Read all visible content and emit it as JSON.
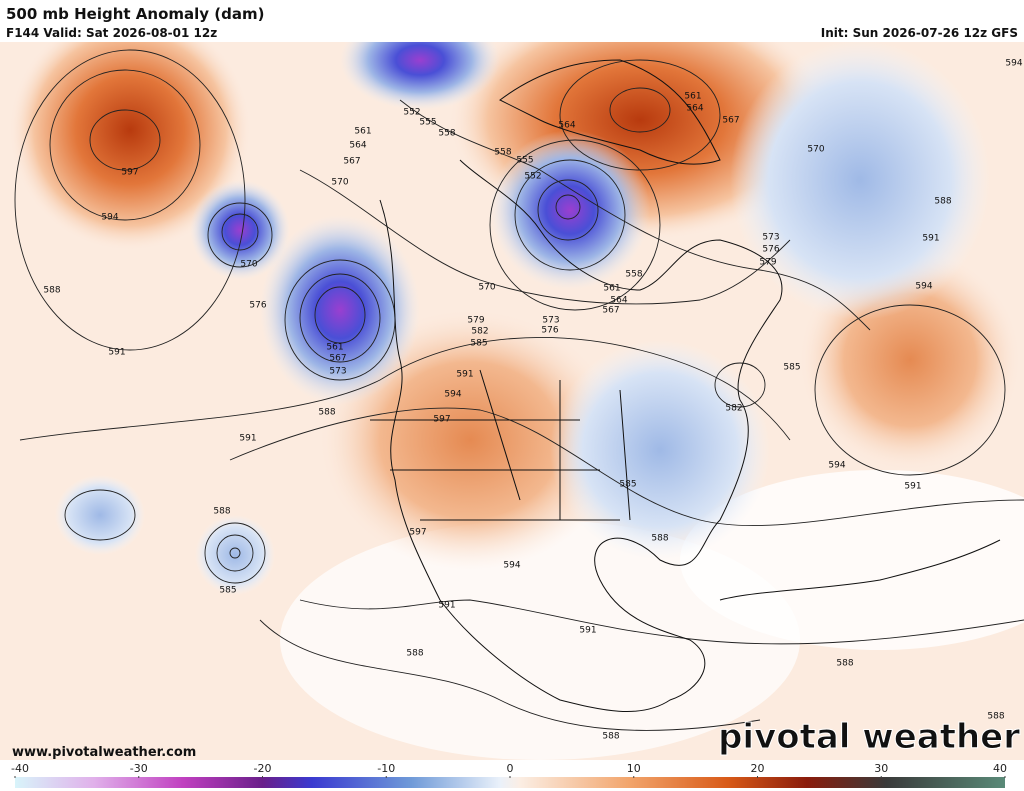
{
  "header": {
    "title": "500 mb Height Anomaly (dam)",
    "valid": "F144 Valid: Sat 2026-08-01 12z",
    "init": "Init: Sun 2026-07-26 12z GFS"
  },
  "contour_labels": [
    "597",
    "594",
    "588",
    "591",
    "570",
    "576",
    "561",
    "567",
    "573",
    "588",
    "591",
    "588",
    "585",
    "552",
    "555",
    "558",
    "561",
    "564",
    "567",
    "570",
    "564",
    "561",
    "564",
    "567",
    "570",
    "588",
    "591",
    "594",
    "573",
    "576",
    "579",
    "558",
    "561",
    "564",
    "567",
    "570",
    "579",
    "582",
    "585",
    "573",
    "576",
    "591",
    "594",
    "597",
    "585",
    "582",
    "594",
    "591",
    "585",
    "588",
    "597",
    "594",
    "591",
    "591",
    "588",
    "588",
    "588",
    "588",
    "594",
    "552",
    "555",
    "558"
  ],
  "footer": {
    "url": "www.pivotalweather.com",
    "logo": "pivotal weather"
  },
  "colorbar": {
    "ticks": [
      -40,
      -30,
      -20,
      -10,
      0,
      10,
      20,
      30,
      40
    ],
    "range": [
      -40,
      40
    ]
  }
}
